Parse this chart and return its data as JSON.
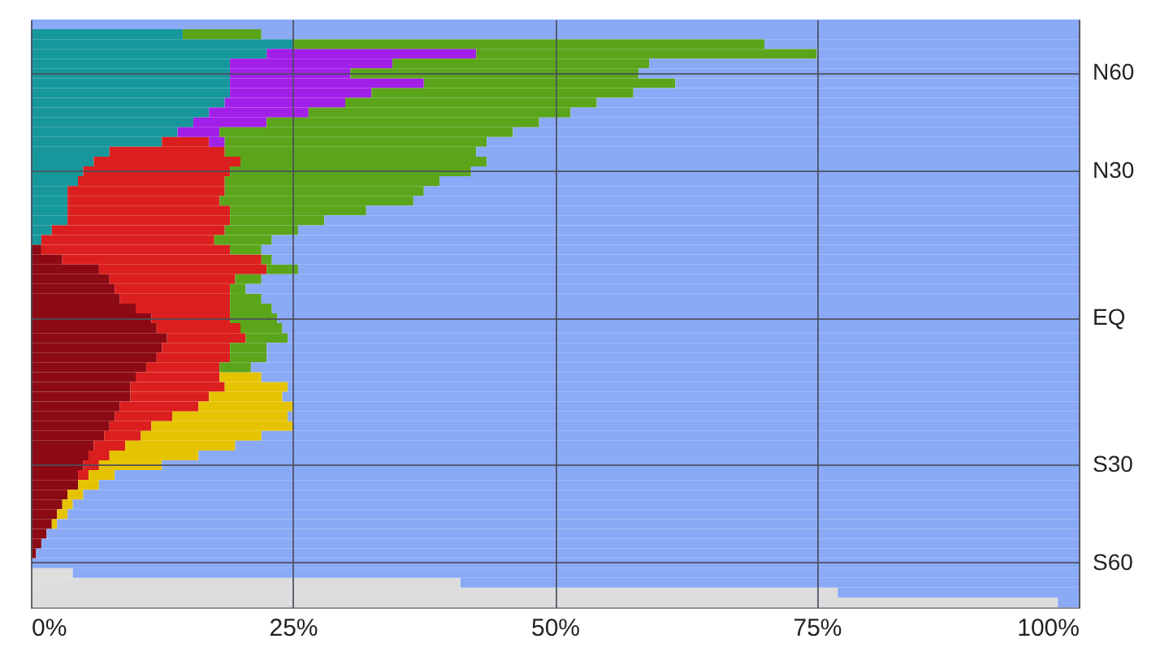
{
  "chart_data": {
    "type": "bar",
    "orientation": "horizontal",
    "stacked": true,
    "grid": true,
    "categories": [
      null,
      null,
      null,
      null,
      null,
      "N60",
      null,
      null,
      null,
      null,
      null,
      null,
      null,
      null,
      null,
      "N30",
      null,
      null,
      null,
      null,
      null,
      null,
      null,
      null,
      null,
      null,
      null,
      null,
      null,
      null,
      "EQ",
      null,
      null,
      null,
      null,
      null,
      null,
      null,
      null,
      null,
      null,
      null,
      null,
      null,
      null,
      "S30",
      null,
      null,
      null,
      null,
      null,
      null,
      null,
      null,
      null,
      "S60",
      null,
      null,
      null,
      null
    ],
    "xlim": [
      0,
      100
    ],
    "xticks": [
      {
        "value": 0,
        "label": "0%"
      },
      {
        "value": 25,
        "label": "25%"
      },
      {
        "value": 50,
        "label": "50%"
      },
      {
        "value": 75,
        "label": "75%"
      },
      {
        "value": 100,
        "label": "100%"
      }
    ],
    "series": [
      {
        "color": "#16979b",
        "values": [
          0,
          14.5,
          25,
          22.5,
          19,
          19,
          19,
          19,
          18.5,
          17,
          15.5,
          14,
          12.5,
          7.5,
          6,
          5,
          4.5,
          3.5,
          3.5,
          3.5,
          3.5,
          2,
          1,
          0,
          0,
          0,
          0,
          0,
          0,
          0,
          0,
          0,
          0,
          0,
          0,
          0,
          0,
          0,
          0,
          0,
          0,
          0,
          0,
          0,
          0,
          0,
          0,
          0,
          0,
          0,
          0,
          0,
          0,
          0,
          0,
          0,
          0,
          0,
          0,
          0
        ]
      },
      {
        "color": "#8c0a14",
        "values": [
          0,
          0,
          0,
          0,
          0,
          0,
          0,
          0,
          0,
          0,
          0,
          0,
          0,
          0,
          0,
          0,
          0,
          0,
          0,
          0,
          0,
          0,
          0,
          1,
          3,
          6.5,
          7.5,
          8,
          8.5,
          10,
          11.5,
          12,
          13,
          12.5,
          12,
          11,
          10,
          9.5,
          9.5,
          8.5,
          8,
          7.5,
          7,
          6,
          5.5,
          5,
          4.5,
          4.5,
          3.5,
          3,
          2.5,
          2,
          1.5,
          1,
          0.5,
          0,
          0,
          0,
          0,
          0
        ]
      },
      {
        "color": "#db1f1f",
        "values": [
          0,
          0,
          0,
          0,
          0,
          0,
          0,
          0,
          0,
          0,
          0,
          0,
          4.5,
          11,
          14,
          14,
          14,
          15,
          14.5,
          15.5,
          15.5,
          16.5,
          16.5,
          18,
          19,
          16,
          12,
          11,
          10.5,
          9,
          7.5,
          8,
          7.5,
          6.5,
          7,
          7,
          8,
          9,
          7.5,
          7.5,
          5.5,
          4,
          3.5,
          3,
          2,
          1.5,
          1,
          0,
          0,
          0,
          0,
          0,
          0,
          0,
          0,
          0,
          0,
          0,
          0,
          0
        ]
      },
      {
        "color": "#e6c300",
        "values": [
          0,
          0,
          0,
          0,
          0,
          0,
          0,
          0,
          0,
          0,
          0,
          0,
          0,
          0,
          0,
          0,
          0,
          0,
          0,
          0,
          0,
          0,
          0,
          0,
          0,
          0,
          0,
          0,
          0,
          0,
          0,
          0,
          0,
          0,
          0,
          0,
          4,
          6,
          7,
          9,
          11,
          13.5,
          11.5,
          10.5,
          8.5,
          6,
          2.5,
          2,
          1.5,
          1,
          1,
          0.5,
          0,
          0,
          0,
          0,
          0,
          0,
          0,
          0
        ]
      },
      {
        "color": "#a21fe8",
        "values": [
          0,
          0,
          0,
          20,
          15.5,
          11.5,
          18.5,
          13.5,
          11.5,
          9.5,
          7,
          4,
          1.5,
          0,
          0,
          0,
          0,
          0,
          0,
          0,
          0,
          0,
          0,
          0,
          0,
          0,
          0,
          0,
          0,
          0,
          0,
          0,
          0,
          0,
          0,
          0,
          0,
          0,
          0,
          0,
          0,
          0,
          0,
          0,
          0,
          0,
          0,
          0,
          0,
          0,
          0,
          0,
          0,
          0,
          0,
          0,
          0,
          0,
          0,
          0
        ]
      },
      {
        "color": "#5ba51a",
        "values": [
          0,
          7.5,
          45,
          32.5,
          24.5,
          27.5,
          24,
          25,
          24,
          25,
          26,
          28,
          25,
          24,
          23.5,
          23,
          20.5,
          19,
          18.5,
          13,
          9,
          7,
          5.5,
          3,
          1,
          3,
          2.5,
          1.5,
          3,
          4,
          4.5,
          4,
          4,
          3.5,
          3.5,
          3,
          0,
          0,
          0,
          0,
          0,
          0,
          0,
          0,
          0,
          0,
          0,
          0,
          0,
          0,
          0,
          0,
          0,
          0,
          0,
          0,
          0,
          0,
          0,
          0
        ]
      },
      {
        "color": "#dddddd",
        "values": [
          0,
          0,
          0,
          0,
          0,
          0,
          0,
          0,
          0,
          0,
          0,
          0,
          0,
          0,
          0,
          0,
          0,
          0,
          0,
          0,
          0,
          0,
          0,
          0,
          0,
          0,
          0,
          0,
          0,
          0,
          0,
          0,
          0,
          0,
          0,
          0,
          0,
          0,
          0,
          0,
          0,
          0,
          0,
          0,
          0,
          0,
          0,
          0,
          0,
          0,
          0,
          0,
          0,
          0,
          0,
          0,
          4,
          41,
          77,
          98
        ]
      },
      {
        "color": "#8aaaf6",
        "values": [
          100,
          78,
          30,
          25,
          41,
          42,
          38.5,
          42.5,
          46,
          48.5,
          51.5,
          54,
          56.5,
          57.5,
          56.5,
          58,
          61,
          62.5,
          63.5,
          68,
          72,
          74.5,
          77,
          78,
          77,
          74.5,
          78,
          79.5,
          78,
          77,
          76.5,
          76,
          75.5,
          77.5,
          77.5,
          79,
          78,
          75.5,
          76,
          75,
          75.5,
          75,
          78,
          80.5,
          84,
          87.5,
          92,
          93.5,
          95,
          96,
          96.5,
          97.5,
          98.5,
          99,
          99.5,
          100,
          96,
          59,
          23,
          2
        ]
      }
    ]
  }
}
